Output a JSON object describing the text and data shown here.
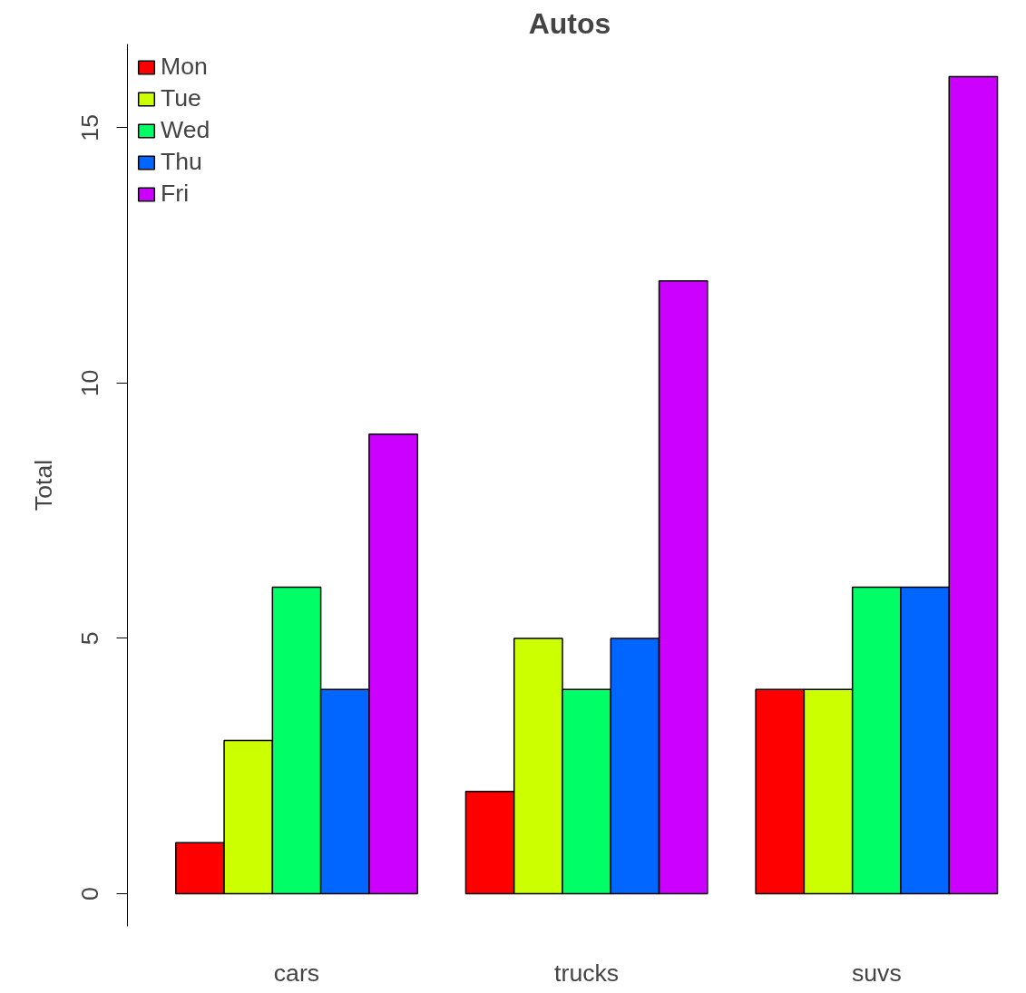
{
  "chart_data": {
    "type": "bar",
    "title": "Autos",
    "ylabel": "Total",
    "categories": [
      "cars",
      "trucks",
      "suvs"
    ],
    "series": [
      {
        "name": "Mon",
        "color": "#ff0000",
        "values": [
          1,
          2,
          4
        ]
      },
      {
        "name": "Tue",
        "color": "#ccff00",
        "values": [
          3,
          5,
          4
        ]
      },
      {
        "name": "Wed",
        "color": "#00ff66",
        "values": [
          6,
          4,
          6
        ]
      },
      {
        "name": "Thu",
        "color": "#0066ff",
        "values": [
          4,
          5,
          6
        ]
      },
      {
        "name": "Fri",
        "color": "#cc00ff",
        "values": [
          9,
          12,
          16
        ]
      }
    ],
    "ylim": [
      -0.64,
      16.64
    ],
    "yticks": [
      0,
      5,
      10,
      15
    ],
    "grid": false,
    "legend": "top left"
  }
}
